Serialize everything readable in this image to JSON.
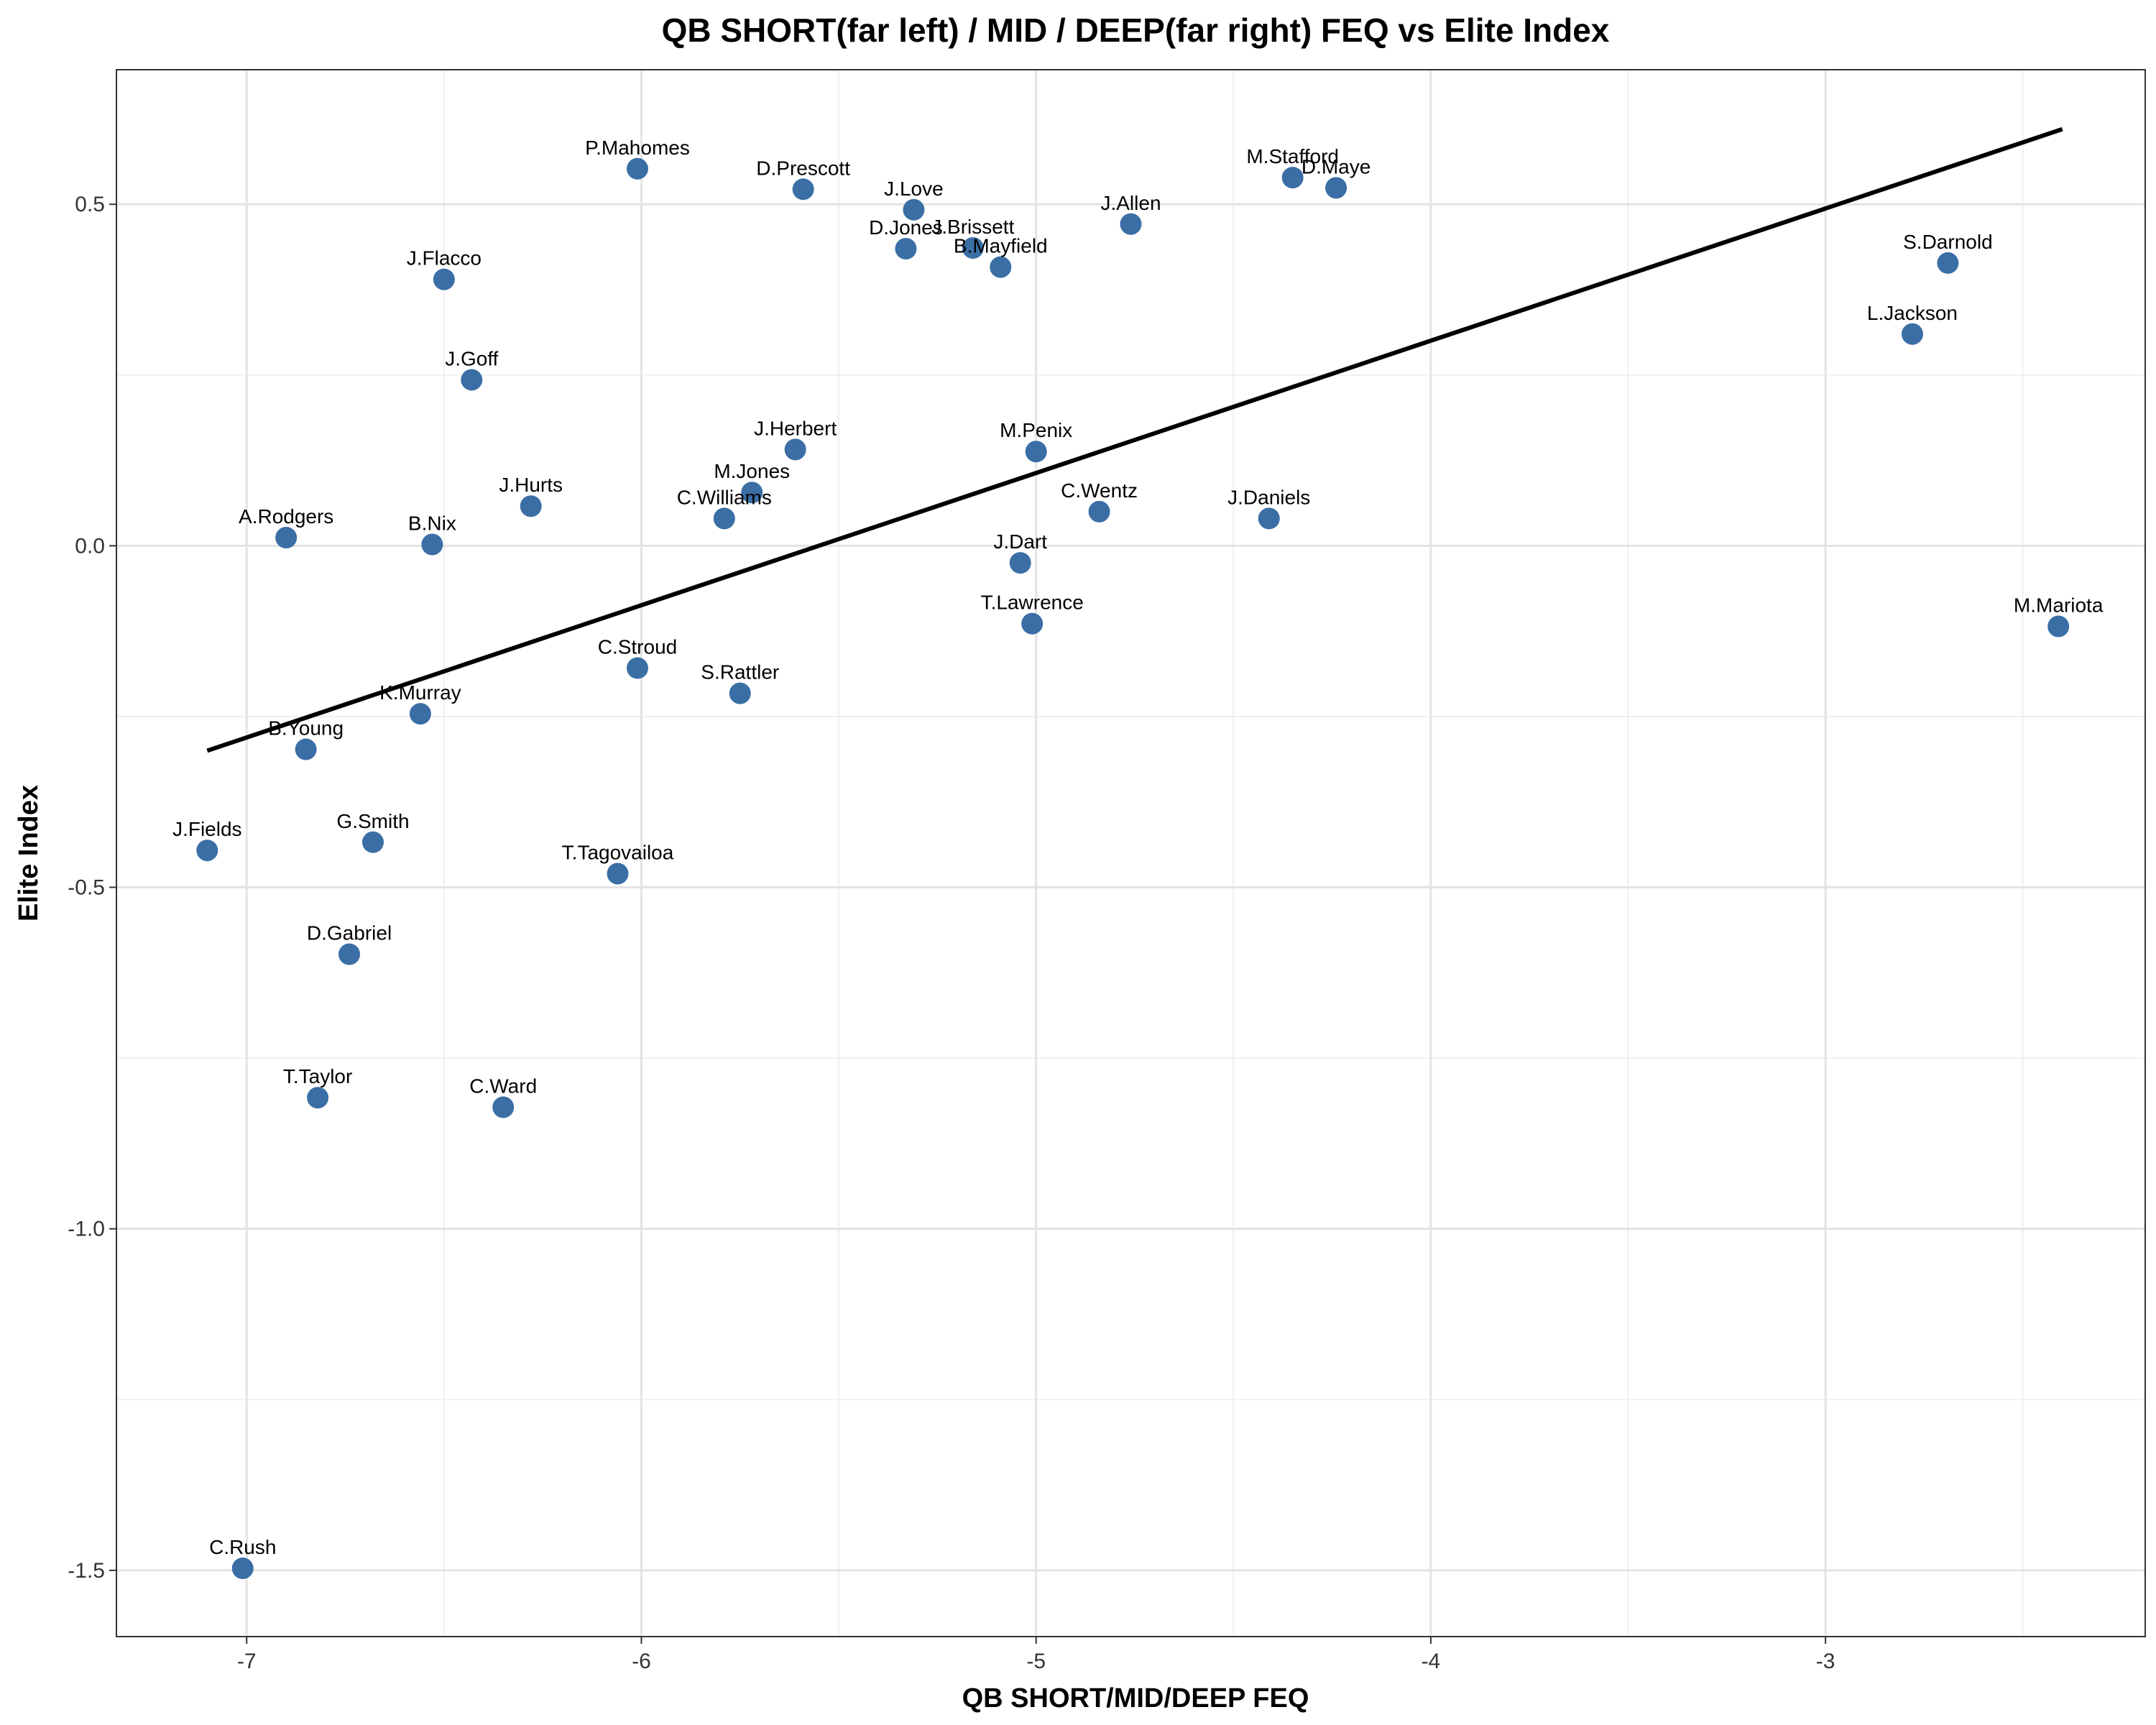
{
  "chart_data": {
    "type": "scatter",
    "title": "QB SHORT(far left) / MID / DEEP(far right) FEQ vs Elite Index",
    "xlabel": "QB SHORT/MID/DEEP FEQ",
    "ylabel": "Elite Index",
    "xlim": [
      -7.33,
      -2.19
    ],
    "ylim": [
      -1.597,
      0.697
    ],
    "xticks": [
      -7,
      -6,
      -5,
      -4,
      -3
    ],
    "xtick_labels": [
      "-7",
      "-6",
      "-5",
      "-4",
      "-3"
    ],
    "yticks": [
      -1.5,
      -1.0,
      -0.5,
      0.0,
      0.5
    ],
    "ytick_labels": [
      "-1.5",
      "-1.0",
      "-0.5",
      "0.0",
      "0.5"
    ],
    "grid": true,
    "point_color": "#3a6ea5",
    "line_color": "#000000",
    "trend_line": {
      "x": [
        -7.1,
        -2.4
      ],
      "y": [
        -0.3,
        0.61
      ]
    },
    "points": [
      {
        "label": "P.Mahomes",
        "x": -6.01,
        "y": 0.552
      },
      {
        "label": "D.Prescott",
        "x": -5.59,
        "y": 0.522
      },
      {
        "label": "J.Love",
        "x": -5.31,
        "y": 0.492
      },
      {
        "label": "D.Jones",
        "x": -5.33,
        "y": 0.435
      },
      {
        "label": "J.Brissett",
        "x": -5.16,
        "y": 0.436
      },
      {
        "label": "B.Mayfield",
        "x": -5.09,
        "y": 0.408
      },
      {
        "label": "J.Allen",
        "x": -4.76,
        "y": 0.471
      },
      {
        "label": "M.Stafford",
        "x": -4.35,
        "y": 0.539
      },
      {
        "label": "D.Maye",
        "x": -4.24,
        "y": 0.524
      },
      {
        "label": "S.Darnold",
        "x": -2.69,
        "y": 0.414
      },
      {
        "label": "L.Jackson",
        "x": -2.78,
        "y": 0.31
      },
      {
        "label": "J.Flacco",
        "x": -6.5,
        "y": 0.39
      },
      {
        "label": "J.Goff",
        "x": -6.43,
        "y": 0.243
      },
      {
        "label": "J.Herbert",
        "x": -5.61,
        "y": 0.141
      },
      {
        "label": "M.Penix",
        "x": -5.0,
        "y": 0.138
      },
      {
        "label": "M.Jones",
        "x": -5.72,
        "y": 0.078
      },
      {
        "label": "J.Hurts",
        "x": -6.28,
        "y": 0.058
      },
      {
        "label": "C.Williams",
        "x": -5.79,
        "y": 0.04
      },
      {
        "label": "C.Wentz",
        "x": -4.84,
        "y": 0.05
      },
      {
        "label": "J.Daniels",
        "x": -4.41,
        "y": 0.04
      },
      {
        "label": "A.Rodgers",
        "x": -6.9,
        "y": 0.012
      },
      {
        "label": "B.Nix",
        "x": -6.53,
        "y": 0.002
      },
      {
        "label": "J.Dart",
        "x": -5.04,
        "y": -0.025
      },
      {
        "label": "T.Lawrence",
        "x": -5.01,
        "y": -0.114
      },
      {
        "label": "M.Mariota",
        "x": -2.41,
        "y": -0.118
      },
      {
        "label": "C.Stroud",
        "x": -6.01,
        "y": -0.179
      },
      {
        "label": "S.Rattler",
        "x": -5.75,
        "y": -0.216
      },
      {
        "label": "K.Murray",
        "x": -6.56,
        "y": -0.246
      },
      {
        "label": "B.Young",
        "x": -6.85,
        "y": -0.298
      },
      {
        "label": "J.Fields",
        "x": -7.1,
        "y": -0.446
      },
      {
        "label": "G.Smith",
        "x": -6.68,
        "y": -0.434
      },
      {
        "label": "T.Tagovailoa",
        "x": -6.06,
        "y": -0.48
      },
      {
        "label": "D.Gabriel",
        "x": -6.74,
        "y": -0.598
      },
      {
        "label": "T.Taylor",
        "x": -6.82,
        "y": -0.808
      },
      {
        "label": "C.Ward",
        "x": -6.35,
        "y": -0.822
      },
      {
        "label": "C.Rush",
        "x": -7.01,
        "y": -1.497
      }
    ]
  }
}
